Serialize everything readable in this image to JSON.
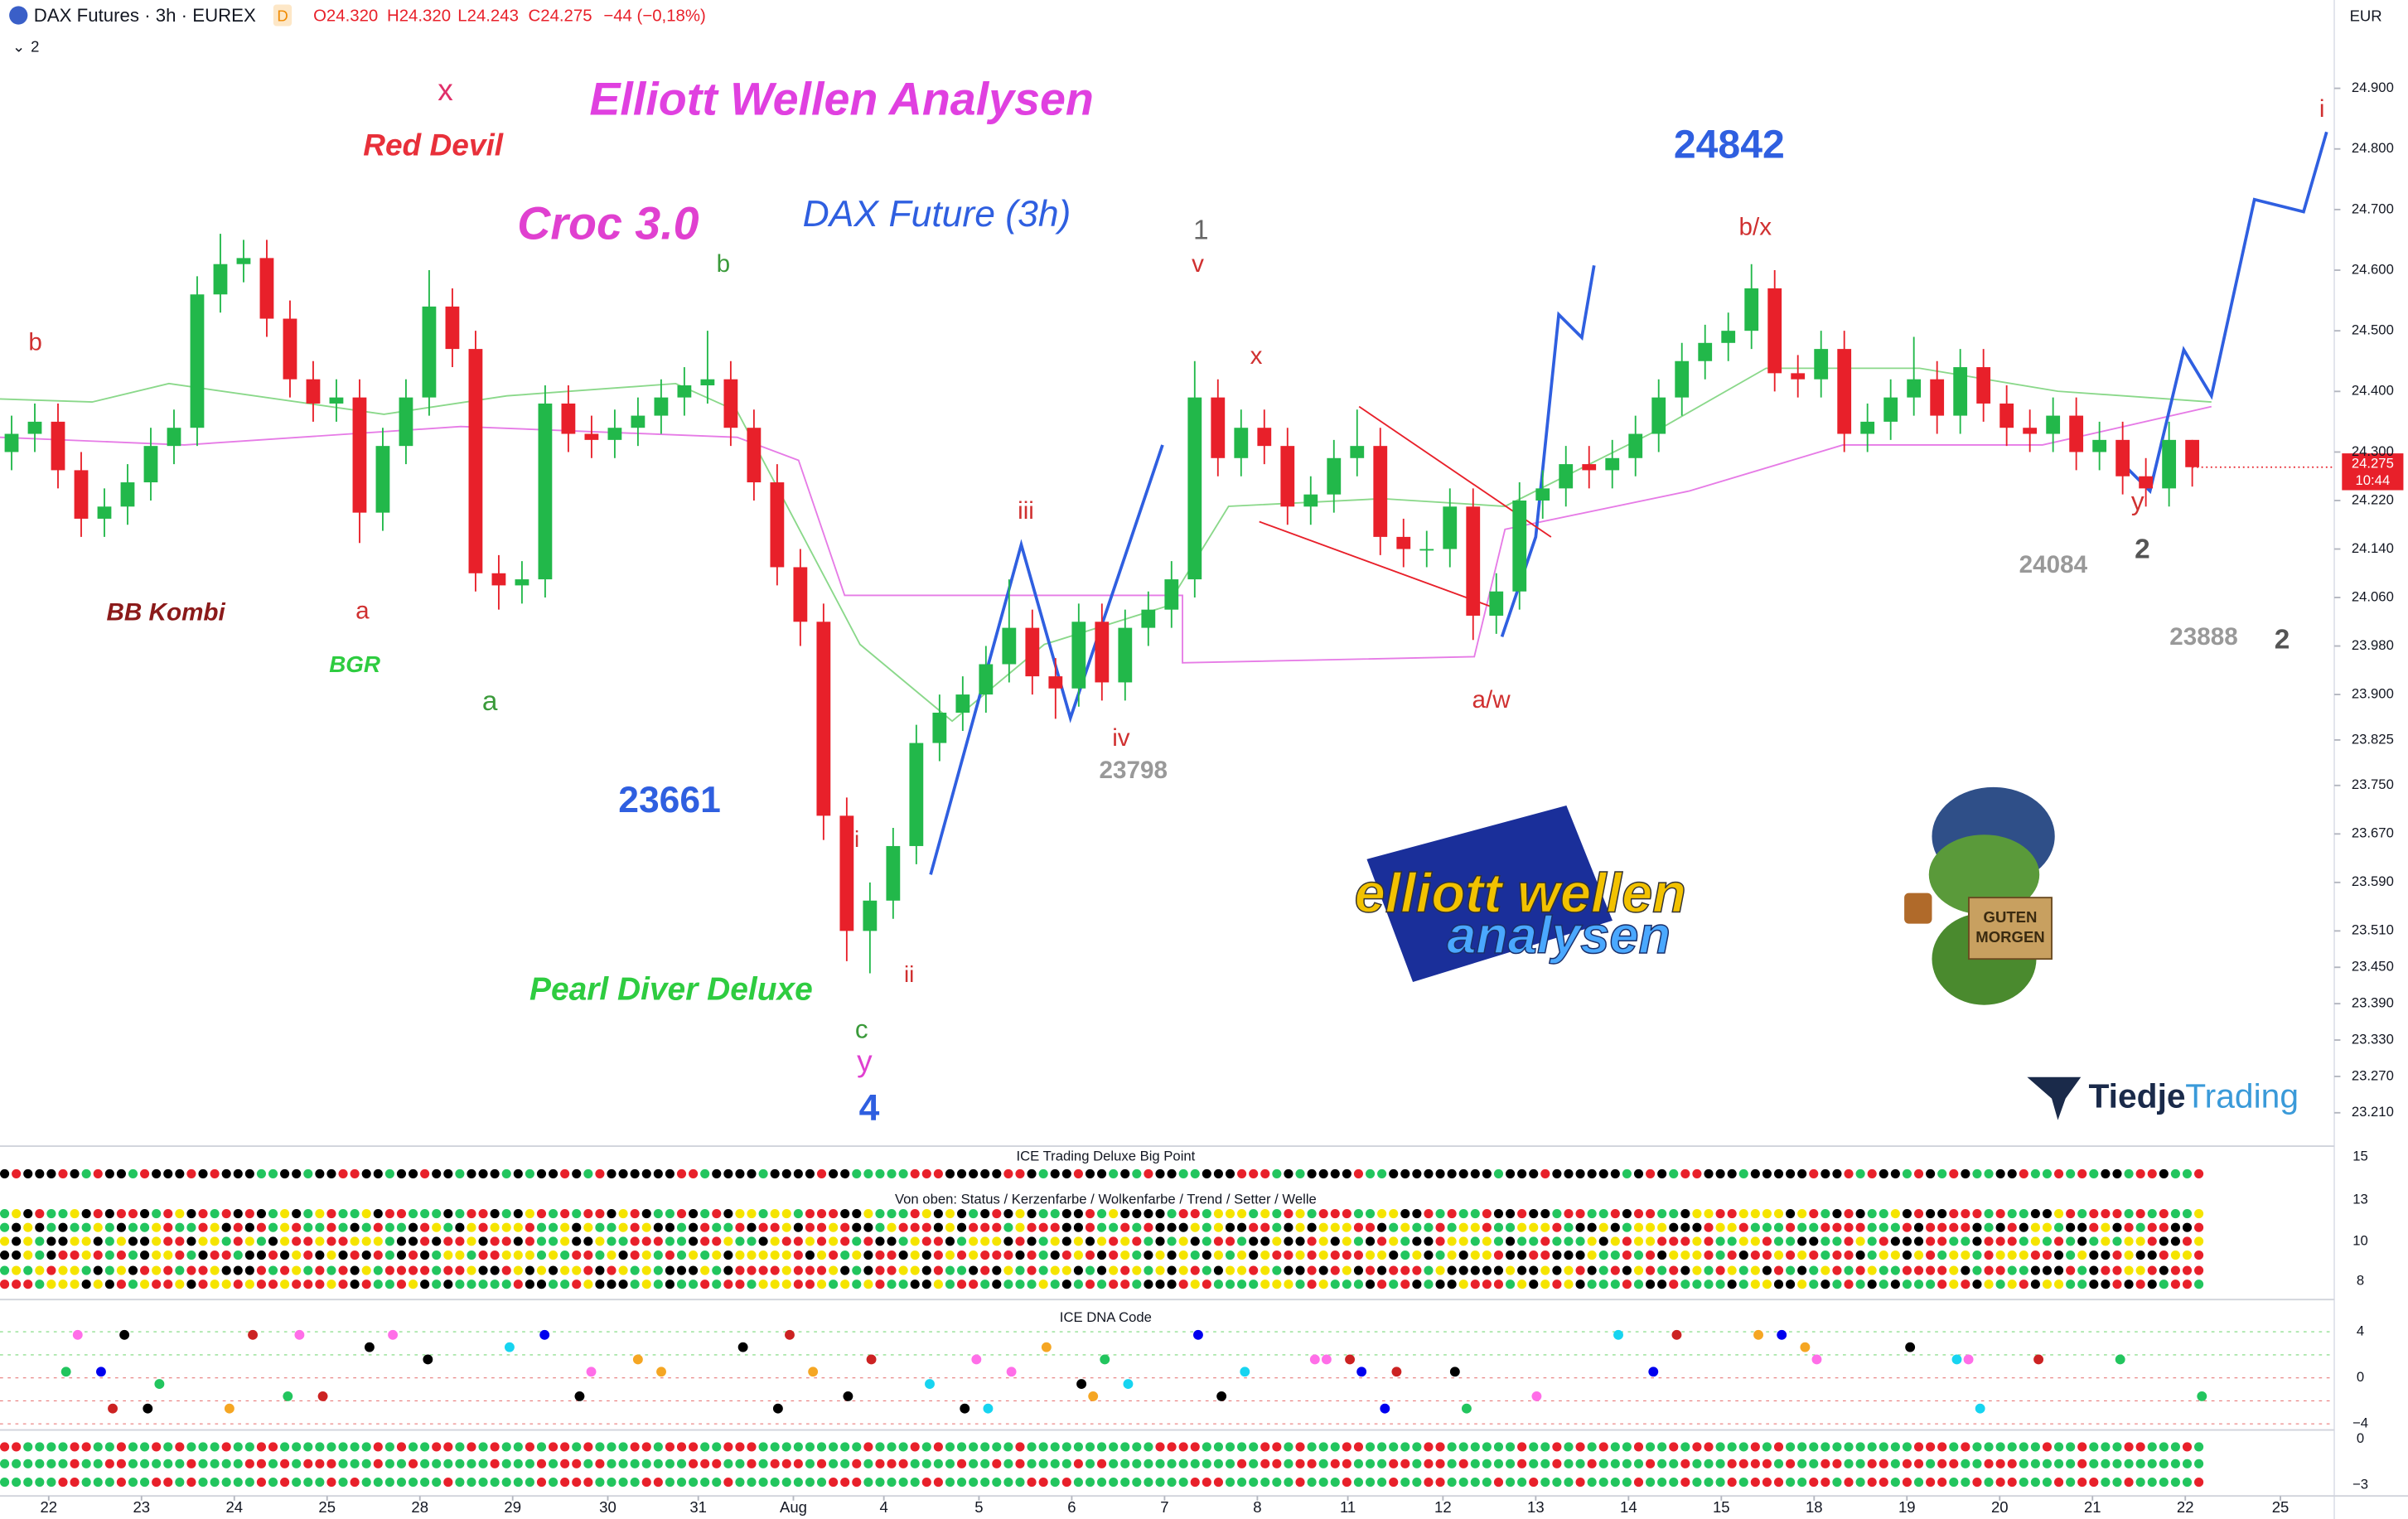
{
  "header": {
    "symbol": "DAX Futures · 3h · EUREX",
    "badge": "D",
    "ohlc": [
      "O24.320",
      "H24.320",
      "L24.243",
      "C24.275"
    ],
    "change": "−44 (−0,18%)",
    "indicators": "2",
    "currency": "EUR",
    "last_time": "10:44"
  },
  "chart_data": {
    "type": "candlestick",
    "up_color": "#22b84a",
    "down_color": "#e8202a",
    "open": [
      24300,
      24330,
      24350,
      24270,
      24190,
      24210,
      24250,
      24310,
      24340,
      24560,
      24610,
      24620,
      24520,
      24420,
      24380,
      24390,
      24200,
      24310,
      24390,
      24540,
      24470,
      24100,
      24080,
      24090,
      24380,
      24330,
      24320,
      24340,
      24360,
      24390,
      24410,
      24420,
      24340,
      24250,
      24110,
      24020,
      23700,
      23510,
      23560,
      23650,
      23820,
      23870,
      23900,
      23950,
      24010,
      23930,
      23910,
      24020,
      23920,
      24010,
      24040,
      24090,
      24390,
      24290,
      24340,
      24310,
      24210,
      24230,
      24290,
      24310,
      24160,
      24140,
      24140,
      24210,
      24030,
      24070,
      24220,
      24240,
      24280,
      24270,
      24290,
      24330,
      24390,
      24450,
      24480,
      24500,
      24570,
      24430,
      24420,
      24470,
      24330,
      24350,
      24390,
      24420,
      24360,
      24440,
      24380,
      24340,
      24330,
      24360,
      24300,
      24320,
      24260,
      24240,
      24320
    ],
    "high": [
      24360,
      24380,
      24380,
      24300,
      24240,
      24280,
      24340,
      24370,
      24590,
      24660,
      24650,
      24650,
      24550,
      24450,
      24420,
      24420,
      24340,
      24420,
      24600,
      24570,
      24500,
      24130,
      24120,
      24410,
      24410,
      24360,
      24370,
      24390,
      24420,
      24440,
      24500,
      24450,
      24370,
      24280,
      24140,
      24050,
      23730,
      23590,
      23680,
      23850,
      23900,
      23930,
      23980,
      24090,
      24040,
      23960,
      24050,
      24050,
      24040,
      24070,
      24120,
      24450,
      24420,
      24370,
      24370,
      24340,
      24260,
      24320,
      24370,
      24340,
      24190,
      24170,
      24240,
      24240,
      24100,
      24250,
      24270,
      24310,
      24310,
      24320,
      24360,
      24420,
      24480,
      24510,
      24530,
      24610,
      24600,
      24460,
      24500,
      24500,
      24380,
      24420,
      24490,
      24450,
      24470,
      24470,
      24410,
      24370,
      24390,
      24390,
      24350,
      24350,
      24290,
      24350,
      24320
    ],
    "low": [
      24270,
      24300,
      24240,
      24160,
      24160,
      24180,
      24220,
      24280,
      24310,
      24530,
      24580,
      24490,
      24390,
      24350,
      24350,
      24150,
      24170,
      24280,
      24360,
      24440,
      24070,
      24040,
      24050,
      24060,
      24300,
      24290,
      24290,
      24310,
      24330,
      24360,
      24380,
      24310,
      24220,
      24080,
      23980,
      23660,
      23460,
      23440,
      23530,
      23620,
      23790,
      23840,
      23870,
      23920,
      23900,
      23860,
      23880,
      23890,
      23890,
      23980,
      24010,
      24060,
      24260,
      24260,
      24280,
      24180,
      24180,
      24200,
      24260,
      24130,
      24110,
      24110,
      24110,
      23990,
      24000,
      24040,
      24190,
      24210,
      24240,
      24240,
      24260,
      24300,
      24360,
      24420,
      24450,
      24470,
      24400,
      24390,
      24390,
      24300,
      24300,
      24320,
      24360,
      24330,
      24330,
      24350,
      24310,
      24300,
      24300,
      24270,
      24270,
      24230,
      24210,
      24210,
      24243
    ],
    "close": [
      24330,
      24350,
      24270,
      24190,
      24210,
      24250,
      24310,
      24340,
      24560,
      24610,
      24620,
      24520,
      24420,
      24380,
      24390,
      24200,
      24310,
      24390,
      24540,
      24470,
      24100,
      24080,
      24090,
      24380,
      24330,
      24320,
      24340,
      24360,
      24390,
      24410,
      24420,
      24340,
      24250,
      24110,
      24020,
      23700,
      23510,
      23560,
      23650,
      23820,
      23870,
      23900,
      23950,
      24010,
      23930,
      23910,
      24020,
      23920,
      24010,
      24040,
      24090,
      24390,
      24290,
      24340,
      24310,
      24210,
      24230,
      24290,
      24310,
      24160,
      24140,
      24140,
      24210,
      24030,
      24070,
      24220,
      24240,
      24280,
      24270,
      24290,
      24330,
      24390,
      24450,
      24480,
      24500,
      24570,
      24430,
      24420,
      24470,
      24330,
      24350,
      24390,
      24420,
      24360,
      24440,
      24380,
      24340,
      24330,
      24360,
      24300,
      24320,
      24260,
      24240,
      24320,
      24275
    ],
    "last_label": "24.275",
    "ylim": [
      23160,
      24990
    ],
    "yticks": [
      {
        "value": 24900,
        "label": "24.900"
      },
      {
        "value": 24800,
        "label": "24.800"
      },
      {
        "value": 24700,
        "label": "24.700"
      },
      {
        "value": 24600,
        "label": "24.600"
      },
      {
        "value": 24500,
        "label": "24.500"
      },
      {
        "value": 24400,
        "label": "24.400"
      },
      {
        "value": 24300,
        "label": "24.300"
      },
      {
        "value": 24220,
        "label": "24.220"
      },
      {
        "value": 24140,
        "label": "24.140"
      },
      {
        "value": 24060,
        "label": "24.060"
      },
      {
        "value": 23980,
        "label": "23.980"
      },
      {
        "value": 23900,
        "label": "23.900"
      },
      {
        "value": 23825,
        "label": "23.825"
      },
      {
        "value": 23750,
        "label": "23.750"
      },
      {
        "value": 23670,
        "label": "23.670"
      },
      {
        "value": 23590,
        "label": "23.590"
      },
      {
        "value": 23510,
        "label": "23.510"
      },
      {
        "value": 23450,
        "label": "23.450"
      },
      {
        "value": 23390,
        "label": "23.390"
      },
      {
        "value": 23330,
        "label": "23.330"
      },
      {
        "value": 23270,
        "label": "23.270"
      },
      {
        "value": 23210,
        "label": "23.210"
      }
    ],
    "xlim": [
      -0.5,
      103.3
    ],
    "xticks": [
      {
        "value": 1.6,
        "label": "22"
      },
      {
        "value": 5.6,
        "label": "23"
      },
      {
        "value": 9.6,
        "label": "24"
      },
      {
        "value": 13.6,
        "label": "25"
      },
      {
        "value": 17.6,
        "label": "28"
      },
      {
        "value": 21.6,
        "label": "29"
      },
      {
        "value": 25.7,
        "label": "30"
      },
      {
        "value": 29.6,
        "label": "31"
      },
      {
        "value": 33.7,
        "label": "Aug"
      },
      {
        "value": 37.6,
        "label": "4"
      },
      {
        "value": 41.7,
        "label": "5"
      },
      {
        "value": 45.7,
        "label": "6"
      },
      {
        "value": 49.7,
        "label": "7"
      },
      {
        "value": 53.7,
        "label": "8"
      },
      {
        "value": 57.6,
        "label": "11"
      },
      {
        "value": 61.7,
        "label": "12"
      },
      {
        "value": 65.7,
        "label": "13"
      },
      {
        "value": 69.7,
        "label": "14"
      },
      {
        "value": 73.7,
        "label": "15"
      },
      {
        "value": 77.7,
        "label": "18"
      },
      {
        "value": 81.7,
        "label": "19"
      },
      {
        "value": 85.7,
        "label": "20"
      },
      {
        "value": 89.7,
        "label": "21"
      },
      {
        "value": 93.7,
        "label": "22"
      },
      {
        "value": 97.8,
        "label": "25"
      }
    ],
    "annotations": [
      "x",
      "Red Devil",
      "Elliott Wellen Analysen",
      "Croc 3.0",
      "DAX Future (3h)",
      "24842",
      "b",
      "b",
      "1",
      "v",
      "x",
      "b/x",
      "i",
      "iii",
      "BB Kombi",
      "a",
      "BGR",
      "a",
      "iv",
      "23798",
      "23661",
      "i",
      "ii",
      "Pearl Diver Deluxe",
      "c",
      "y",
      "4",
      "a/w",
      "24084",
      "y",
      "2",
      "23888",
      "2"
    ]
  },
  "panes": {
    "titles": [
      "ICE Trading Deluxe Big Point",
      "Von oben: Status / Kerzenfarbe / Wolkenfarbe / Trend / Setter / Welle",
      "ICE DNA Code"
    ],
    "axis_labels": [
      "15",
      "13",
      "10",
      "8",
      "4",
      "0",
      "−4",
      "0",
      "−3"
    ]
  },
  "logos": {
    "ew_top": "elliott wellen",
    "ew_bottom": "analysen",
    "sign": "GUTEN MORGEN",
    "brand_a": "Tiedje",
    "brand_b": "Trading"
  }
}
